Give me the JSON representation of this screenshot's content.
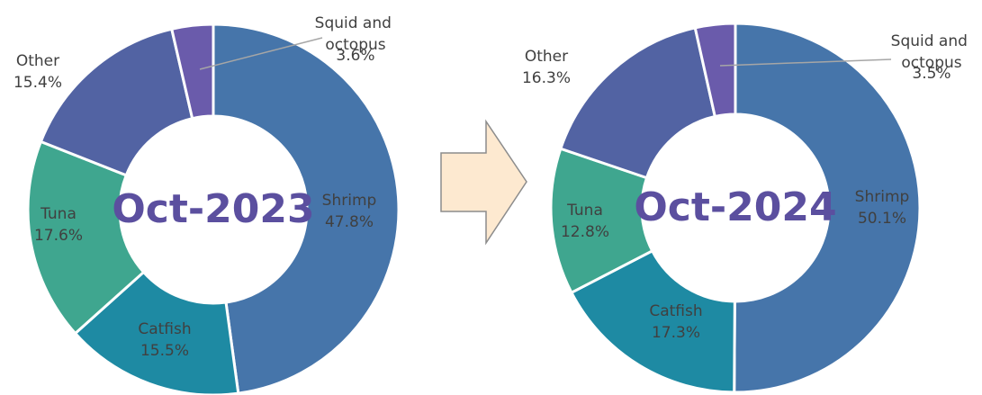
{
  "chart_data": [
    {
      "type": "pie",
      "donut": true,
      "title": "Oct-2023",
      "categories": [
        "Shrimp",
        "Catfish",
        "Tuna",
        "Other",
        "Squid and octopus"
      ],
      "values": [
        47.8,
        15.5,
        17.6,
        15.4,
        3.6
      ],
      "value_labels": [
        "47.8%",
        "15.5%",
        "17.6%",
        "15.4%",
        "3.6%"
      ],
      "colors": [
        "#4675aa",
        "#1e8aa3",
        "#3fa68f",
        "#5263a3",
        "#6a5bab"
      ]
    },
    {
      "type": "pie",
      "donut": true,
      "title": "Oct-2024",
      "categories": [
        "Shrimp",
        "Catfish",
        "Tuna",
        "Other",
        "Squid and octopus"
      ],
      "values": [
        50.1,
        17.3,
        12.8,
        16.3,
        3.5
      ],
      "value_labels": [
        "50.1%",
        "17.3%",
        "12.8%",
        "16.3%",
        "3.5%"
      ],
      "colors": [
        "#4675aa",
        "#1e8aa3",
        "#3fa68f",
        "#5263a3",
        "#6a5bab"
      ]
    }
  ]
}
